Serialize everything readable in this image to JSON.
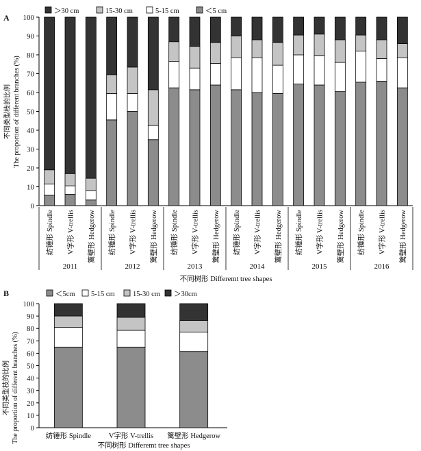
{
  "colors": {
    "lt5": "#8c8c8c",
    "b5_15": "#ffffff",
    "b15_30": "#c4c4c4",
    "gt30": "#333333"
  },
  "chart_data": [
    {
      "panel": "A",
      "type": "bar",
      "stacked": true,
      "ylabel": "不同类型枝的比例\nThe proportion of different branches (%)",
      "xlabel": "不同树形 Differemt tree shapes",
      "ylim": [
        0,
        100
      ],
      "yticks": [
        0,
        10,
        20,
        30,
        40,
        50,
        60,
        70,
        80,
        90,
        100
      ],
      "legend": {
        "position": "top-left",
        "order": [
          ">30 cm",
          "15-30 cm",
          "5-15 cm",
          "<5 cm"
        ],
        "labels": [
          "＞30 cm",
          "15-30 cm",
          "5-15 cm",
          "＜5 cm"
        ]
      },
      "groups": [
        "2011",
        "2012",
        "2013",
        "2014",
        "2015",
        "2016"
      ],
      "shapes": [
        "纺锤形 Spindle",
        "V字形 V-trellis",
        "篱壁形 Hedgerow"
      ],
      "series": [
        {
          "name": "<5 cm",
          "values": [
            5.5,
            6,
            3,
            45.5,
            50,
            35,
            62.5,
            61.5,
            64,
            61.5,
            60,
            59.5,
            64.5,
            64,
            60.5,
            65.5,
            66,
            62.5
          ]
        },
        {
          "name": "5-15 cm",
          "values": [
            6,
            4.5,
            5,
            14,
            9.5,
            7.5,
            14,
            11.5,
            11.5,
            17,
            18.5,
            15,
            15.5,
            15.5,
            15.5,
            16.5,
            12,
            16
          ]
        },
        {
          "name": "15-30 cm",
          "values": [
            7.5,
            6.5,
            6.5,
            10,
            14,
            19,
            10.5,
            11.5,
            11,
            11.5,
            9.5,
            12,
            10.5,
            11.5,
            12,
            8.5,
            10,
            7.5
          ]
        },
        {
          "name": ">30 cm",
          "values": [
            81,
            83,
            85.5,
            30.5,
            26.5,
            38.5,
            13,
            15.5,
            13.5,
            10,
            12,
            13.5,
            9.5,
            9,
            12,
            9.5,
            12,
            14
          ]
        }
      ]
    },
    {
      "panel": "B",
      "type": "bar",
      "stacked": true,
      "ylabel": "不同类型枝的比例\nThe proportion of different branches (%)",
      "xlabel": "不同树形 Differemt tree shapes",
      "ylim": [
        0,
        100
      ],
      "yticks": [
        0,
        10,
        20,
        30,
        40,
        50,
        60,
        70,
        80,
        90,
        100
      ],
      "legend": {
        "position": "top-left",
        "order": [
          "<5 cm",
          "5-15 cm",
          "15-30 cm",
          ">30 cm"
        ],
        "labels": [
          "＜5cm",
          "5-15 cm",
          "15-30 cm",
          "＞30cm"
        ]
      },
      "categories": [
        "纺锤形 Spindle",
        "V字形 V-trellis",
        "篱壁形 Hedgerow"
      ],
      "series": [
        {
          "name": "<5 cm",
          "values": [
            65,
            65,
            61.5
          ]
        },
        {
          "name": "5-15 cm",
          "values": [
            16,
            13.5,
            15.5
          ]
        },
        {
          "name": "15-30 cm",
          "values": [
            9,
            10.5,
            9.5
          ]
        },
        {
          "name": ">30 cm",
          "values": [
            10,
            11,
            13.5
          ]
        }
      ]
    }
  ]
}
